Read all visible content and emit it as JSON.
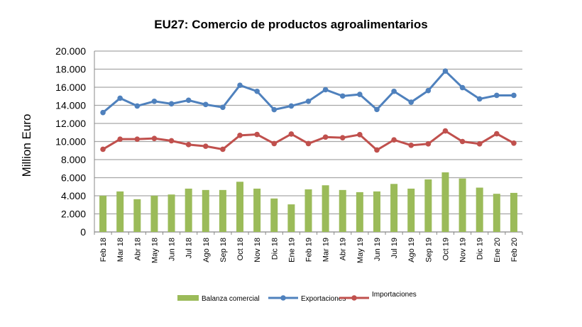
{
  "chart_data": {
    "type": "bar+line",
    "title": "EU27: Comercio de productos agroalimentarios",
    "ylabel": "Million Euro",
    "xlabel": "",
    "ylim": [
      0,
      20000
    ],
    "yticks": [
      "0",
      "2.000",
      "4.000",
      "6.000",
      "8.000",
      "10.000",
      "12.000",
      "14.000",
      "16.000",
      "18.000",
      "20.000"
    ],
    "grid": true,
    "legend_position": "bottom",
    "categories": [
      "Feb 18",
      "Mar 18",
      "Abr 18",
      "May 18",
      "Jun 18",
      "Jul 18",
      "Ago 18",
      "Sep 18",
      "Oct 18",
      "Nov 18",
      "Dic 18",
      "Ene 19",
      "Feb 19",
      "Mar 19",
      "Abr 19",
      "May 19",
      "Jun 19",
      "Jul 19",
      "Ago 19",
      "Sep 19",
      "Oct 19",
      "Nov 19",
      "Dic 19",
      "Ene 20",
      "Feb 20"
    ],
    "series": [
      {
        "name": "Balanza comercial",
        "type": "bar",
        "color": "#9bbb59",
        "values": [
          4010,
          4480,
          3620,
          4010,
          4140,
          4790,
          4640,
          4640,
          5550,
          4790,
          3700,
          3050,
          4710,
          5160,
          4640,
          4400,
          4480,
          5310,
          4790,
          5810,
          6590,
          5910,
          4900,
          4220,
          4320
        ]
      },
      {
        "name": "Exportaciones",
        "type": "line",
        "color": "#4f81bd",
        "values": [
          13200,
          14790,
          13930,
          14450,
          14170,
          14560,
          14090,
          13780,
          16220,
          15550,
          13520,
          13930,
          14450,
          15730,
          15030,
          15210,
          13540,
          15550,
          14350,
          15630,
          17790,
          15960,
          14710,
          15100,
          15100
        ]
      },
      {
        "name": "Importaciones",
        "type": "line",
        "color": "#c0504d",
        "values": [
          9140,
          10260,
          10260,
          10340,
          10080,
          9660,
          9480,
          9140,
          10680,
          10780,
          9770,
          10830,
          9770,
          10490,
          10420,
          10760,
          9060,
          10180,
          9580,
          9740,
          11170,
          10000,
          9740,
          10860,
          9820
        ]
      }
    ]
  }
}
